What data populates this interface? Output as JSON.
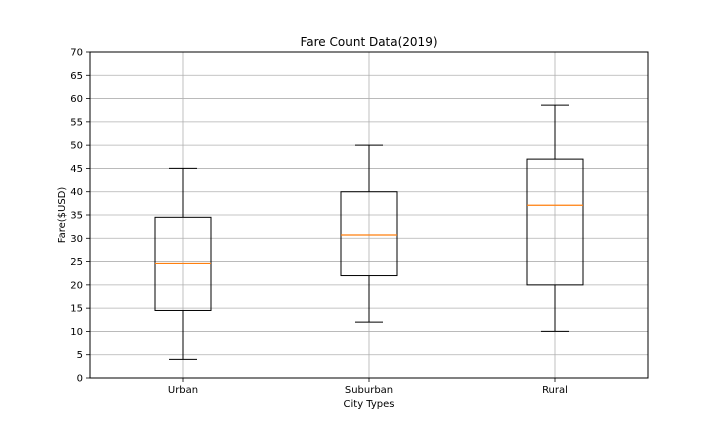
{
  "chart_data": {
    "type": "box",
    "title": "Fare Count Data(2019)",
    "xlabel": "City Types",
    "ylabel": "Fare($USD)",
    "categories": [
      "Urban",
      "Suburban",
      "Rural"
    ],
    "boxes": [
      {
        "category": "Urban",
        "whisker_low": 4,
        "q1": 14.5,
        "median": 24.6,
        "q3": 34.5,
        "whisker_high": 45
      },
      {
        "category": "Suburban",
        "whisker_low": 12,
        "q1": 22,
        "median": 30.7,
        "q3": 40,
        "whisker_high": 50
      },
      {
        "category": "Rural",
        "whisker_low": 10,
        "q1": 20,
        "median": 37.1,
        "q3": 47,
        "whisker_high": 58.6
      }
    ],
    "ylim": [
      0,
      70
    ],
    "yticks": [
      0,
      5,
      10,
      15,
      20,
      25,
      30,
      35,
      40,
      45,
      50,
      55,
      60,
      65,
      70
    ],
    "grid": true,
    "colors": {
      "box": "#000000",
      "median": "#ff7f0e",
      "grid": "#b0b0b0"
    }
  }
}
